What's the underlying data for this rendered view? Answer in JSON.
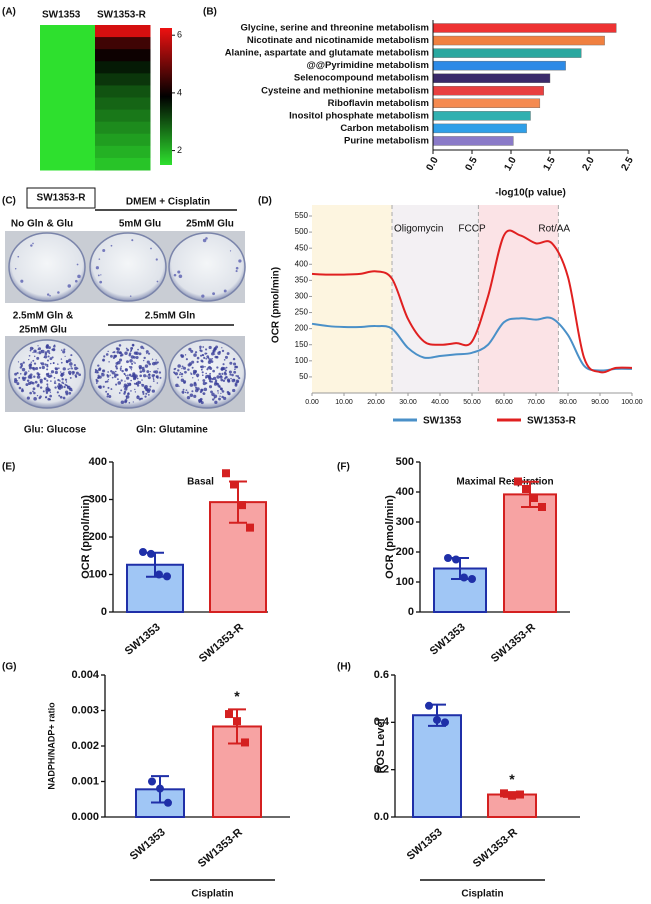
{
  "chart_data": [
    {
      "type": "heatmap",
      "panel_label": "(A)",
      "columns": [
        "SW1353",
        "SW1353-R"
      ],
      "values": [
        [
          1.5,
          1.5,
          1.5,
          1.5,
          1.5,
          1.5,
          1.5,
          1.5,
          1.5,
          1.5,
          1.5,
          1.5
        ],
        [
          6,
          4.5,
          4,
          3.6,
          3.3,
          3,
          2.8,
          2.6,
          2.4,
          2.2,
          2,
          1.8
        ]
      ],
      "colorbar_lim": [
        1.5,
        6.25
      ],
      "colorbar_ticks": [
        2,
        4,
        6
      ],
      "colors": [
        "#2ee02e",
        "#000000",
        "#ee1111"
      ]
    },
    {
      "type": "barh",
      "panel_label": "(B)",
      "categories": [
        "Glycine, serine and threonine metabolism",
        "Nicotinate and nicotinamide metabolism",
        "Alanine, aspartate and glutamate metabolism",
        "@@Pyrimidine metabolism",
        "Selenocompound metabolism",
        "Cysteine and methionine metabolism",
        "Riboflavin metabolism",
        "Inositol phosphate metabolism",
        "Carbon metabolism",
        "Purine metabolism"
      ],
      "values": [
        2.35,
        2.2,
        1.9,
        1.7,
        1.5,
        1.42,
        1.37,
        1.25,
        1.2,
        1.03
      ],
      "colors": [
        "#ee3333",
        "#f08040",
        "#2aa8a0",
        "#2d8ae6",
        "#3a2a6a",
        "#e84040",
        "#f58a50",
        "#30b0b0",
        "#2f9fe8",
        "#8a7ac8"
      ],
      "xlim": [
        0,
        2.5
      ],
      "xticks": [
        {
          "value": 0,
          "label": "0.0"
        },
        0.5,
        {
          "value": 1,
          "label": "1.0"
        },
        1.5,
        {
          "value": 2,
          "label": "2.0"
        },
        2.5
      ],
      "xlabel": "-log10(p value)"
    },
    {
      "type": "line",
      "panel_label": "(D)",
      "x": [
        0,
        5,
        10,
        15,
        20,
        25,
        30,
        35,
        40,
        45,
        50,
        55,
        60,
        65,
        70,
        75,
        80,
        85,
        90,
        95,
        100
      ],
      "series": [
        {
          "name": "SW1353",
          "color": "#4a90c8",
          "values": [
            215,
            208,
            205,
            205,
            208,
            200,
            140,
            110,
            115,
            120,
            125,
            150,
            220,
            232,
            228,
            232,
            180,
            85,
            70,
            75,
            75
          ]
        },
        {
          "name": "SW1353-R",
          "color": "#e02020",
          "values": [
            370,
            368,
            368,
            370,
            378,
            355,
            230,
            160,
            150,
            155,
            160,
            300,
            490,
            490,
            465,
            465,
            360,
            110,
            65,
            78,
            78
          ]
        }
      ],
      "xlim": [
        0,
        100
      ],
      "xticks": [
        {
          "value": 0,
          "label": "0.00"
        },
        {
          "value": 10,
          "label": "10.00"
        },
        {
          "value": 20,
          "label": "20.00"
        },
        {
          "value": 30,
          "label": "30.00"
        },
        {
          "value": 40,
          "label": "40.00"
        },
        {
          "value": 50,
          "label": "50.00"
        },
        {
          "value": 60,
          "label": "60.00"
        },
        {
          "value": 70,
          "label": "70.00"
        },
        {
          "value": 80,
          "label": "80.00"
        },
        {
          "value": 90,
          "label": "90.00"
        },
        {
          "value": 100,
          "label": "100.00"
        }
      ],
      "ylim": [
        0,
        550
      ],
      "yticks": [
        50,
        100,
        150,
        200,
        250,
        300,
        350,
        400,
        450,
        500,
        550
      ],
      "ylabel": "OCR (pmol/min)",
      "annotations": [
        {
          "text": "Oligomycin",
          "x": 25
        },
        {
          "text": "FCCP",
          "x": 52
        },
        {
          "text": "Rot/AA",
          "x": 77
        }
      ],
      "shaded": [
        {
          "start": 0,
          "end": 25,
          "color": "#fdf5e0"
        },
        {
          "start": 25,
          "end": 52,
          "color": "#f3f0f3"
        },
        {
          "start": 52,
          "end": 77,
          "color": "#fbe3e6"
        }
      ]
    },
    {
      "type": "bar_scatter",
      "panel_label": "(E)",
      "title": "Basal",
      "categories": [
        "SW1353",
        "SW1353-R"
      ],
      "values": [
        126,
        293
      ],
      "errors": [
        32,
        55
      ],
      "points": [
        [
          160,
          155,
          100,
          95
        ],
        [
          370,
          340,
          285,
          225
        ]
      ],
      "colors": [
        "#a0c6f5",
        "#f7a3a3"
      ],
      "edge_colors": [
        "#1f2fa8",
        "#d42020"
      ],
      "markers": [
        "circle",
        "square"
      ],
      "ylim": [
        0,
        400
      ],
      "yticks": [
        0,
        100,
        200,
        300,
        400
      ],
      "ylabel": "OCR (pmol/min)"
    },
    {
      "type": "bar_scatter",
      "panel_label": "(F)",
      "title": "Maximal Respiration",
      "categories": [
        "SW1353",
        "SW1353-R"
      ],
      "values": [
        145,
        392
      ],
      "errors": [
        35,
        42
      ],
      "points": [
        [
          180,
          175,
          115,
          110
        ],
        [
          435,
          410,
          380,
          350
        ]
      ],
      "colors": [
        "#a0c6f5",
        "#f7a3a3"
      ],
      "edge_colors": [
        "#1f2fa8",
        "#d42020"
      ],
      "markers": [
        "circle",
        "square"
      ],
      "ylim": [
        0,
        500
      ],
      "yticks": [
        0,
        100,
        200,
        300,
        400,
        500
      ],
      "ylabel": "OCR (pmol/min)"
    },
    {
      "type": "bar_scatter",
      "panel_label": "(G)",
      "categories": [
        "SW1353",
        "SW1353-R"
      ],
      "values": [
        0.00078,
        0.00255
      ],
      "errors": [
        0.00037,
        0.00048
      ],
      "points": [
        [
          0.001,
          0.0008,
          0.0004
        ],
        [
          0.0029,
          0.0027,
          0.0021
        ]
      ],
      "colors": [
        "#a0c6f5",
        "#f7a3a3"
      ],
      "edge_colors": [
        "#1f2fa8",
        "#d42020"
      ],
      "markers": [
        "circle",
        "square"
      ],
      "significance": [
        null,
        "*"
      ],
      "group_label": "Cisplatin",
      "ylim": [
        0,
        0.004
      ],
      "yticks": [
        {
          "value": 0,
          "label": "0.000"
        },
        {
          "value": 0.001,
          "label": "0.001"
        },
        {
          "value": 0.002,
          "label": "0.002"
        },
        {
          "value": 0.003,
          "label": "0.003"
        },
        {
          "value": 0.004,
          "label": "0.004"
        }
      ],
      "ylabel": "NADPH/NADP+ ratio"
    },
    {
      "type": "bar_scatter",
      "panel_label": "(H)",
      "categories": [
        "SW1353",
        "SW1353-R"
      ],
      "values": [
        0.43,
        0.095
      ],
      "errors": [
        0.045,
        0.01
      ],
      "points": [
        [
          0.47,
          0.41,
          0.4
        ],
        [
          0.1,
          0.09,
          0.095
        ]
      ],
      "colors": [
        "#a0c6f5",
        "#f7a3a3"
      ],
      "edge_colors": [
        "#1f2fa8",
        "#d42020"
      ],
      "markers": [
        "circle",
        "square"
      ],
      "significance": [
        null,
        "*"
      ],
      "group_label": "Cisplatin",
      "ylim": [
        0,
        0.6
      ],
      "yticks": [
        {
          "value": 0,
          "label": "0.0"
        },
        0.2,
        0.4,
        0.6
      ],
      "ylabel": "ROS Level"
    }
  ],
  "photo_panel": {
    "panel_label": "(C)",
    "cell_line": "SW1353-R",
    "treatment": "DMEM + Cisplatin",
    "top_labels": [
      "No Gln & Glu",
      "5mM Glu",
      "25mM Glu"
    ],
    "bottom_left_label": [
      "2.5mM Gln &",
      "25mM Glu"
    ],
    "bottom_right_label": "2.5mM Gln",
    "legend": [
      "Glu: Glucose",
      "Gln: Glutamine"
    ]
  }
}
